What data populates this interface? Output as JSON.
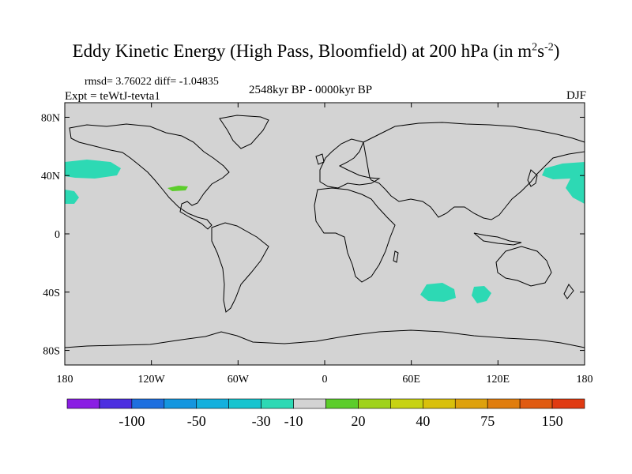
{
  "title": {
    "text": "Eddy Kinetic Energy (High Pass, Bloomfield) at 200 hPa (in m",
    "unit_sup1": "2",
    "unit_mid": "s",
    "unit_sup2": "-2",
    "unit_close": ")"
  },
  "subtitles": {
    "rmsd": "rmsd= 3.76022 diff= -1.04835",
    "expt": "Expt = teWtJ-tevta1",
    "period": "2548kyr BP - 0000kyr BP",
    "season": "DJF"
  },
  "colors": {
    "land_ocean_background": "#d3d3d3",
    "coast": "#000000",
    "neg_10_fill": "#2dd9b4",
    "pos_20_fill": "#5ccd2b"
  },
  "map": {
    "lon_ticks": [
      "180",
      "120W",
      "60W",
      "0",
      "60E",
      "120E",
      "180"
    ],
    "lat_ticks": [
      "80N",
      "40N",
      "0",
      "40S",
      "80S"
    ]
  },
  "colorbar": {
    "labels": [
      "-100",
      "-50",
      "-30",
      "-10",
      "20",
      "40",
      "75",
      "150"
    ],
    "colors": [
      "#8a1ee3",
      "#4c2ee0",
      "#1e6fdf",
      "#1496df",
      "#14b0dd",
      "#16c4cf",
      "#2dd9b4",
      "#d3d3d3",
      "#5ccd2b",
      "#9fd21a",
      "#c7d212",
      "#d9c00b",
      "#dea10c",
      "#e07d0d",
      "#e05a10",
      "#e03a12"
    ]
  }
}
